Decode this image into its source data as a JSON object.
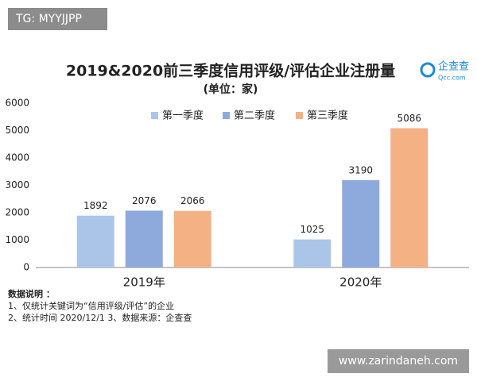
{
  "chart_data": {
    "type": "bar",
    "title": "2019&2020前三季度信用评级/评估企业注册量",
    "subtitle": "(单位：家)",
    "categories": [
      "2019年",
      "2020年"
    ],
    "series": [
      {
        "name": "第一季度",
        "color": "#abc5e9",
        "values": [
          1892,
          1025
        ]
      },
      {
        "name": "第二季度",
        "color": "#8eaadc",
        "values": [
          2076,
          3190
        ]
      },
      {
        "name": "第三季度",
        "color": "#f4b183",
        "values": [
          2066,
          5086
        ]
      }
    ],
    "ylim": [
      0,
      6000
    ],
    "yticks": [
      0,
      1000,
      2000,
      3000,
      4000,
      5000,
      6000
    ],
    "grid": false,
    "legend": "top",
    "notes": [
      "数据说明 ：",
      "1、仅统计关键词为“信用评级/评估”的企业",
      "2、统计时间  2020/12/1    3、数据来源：企查查"
    ]
  },
  "logo": {
    "name": "企查查",
    "domain": "Qcc.com"
  },
  "watermarks": {
    "top": "TG: MYYJJPP",
    "bottom": "www.zarindaneh.com"
  }
}
